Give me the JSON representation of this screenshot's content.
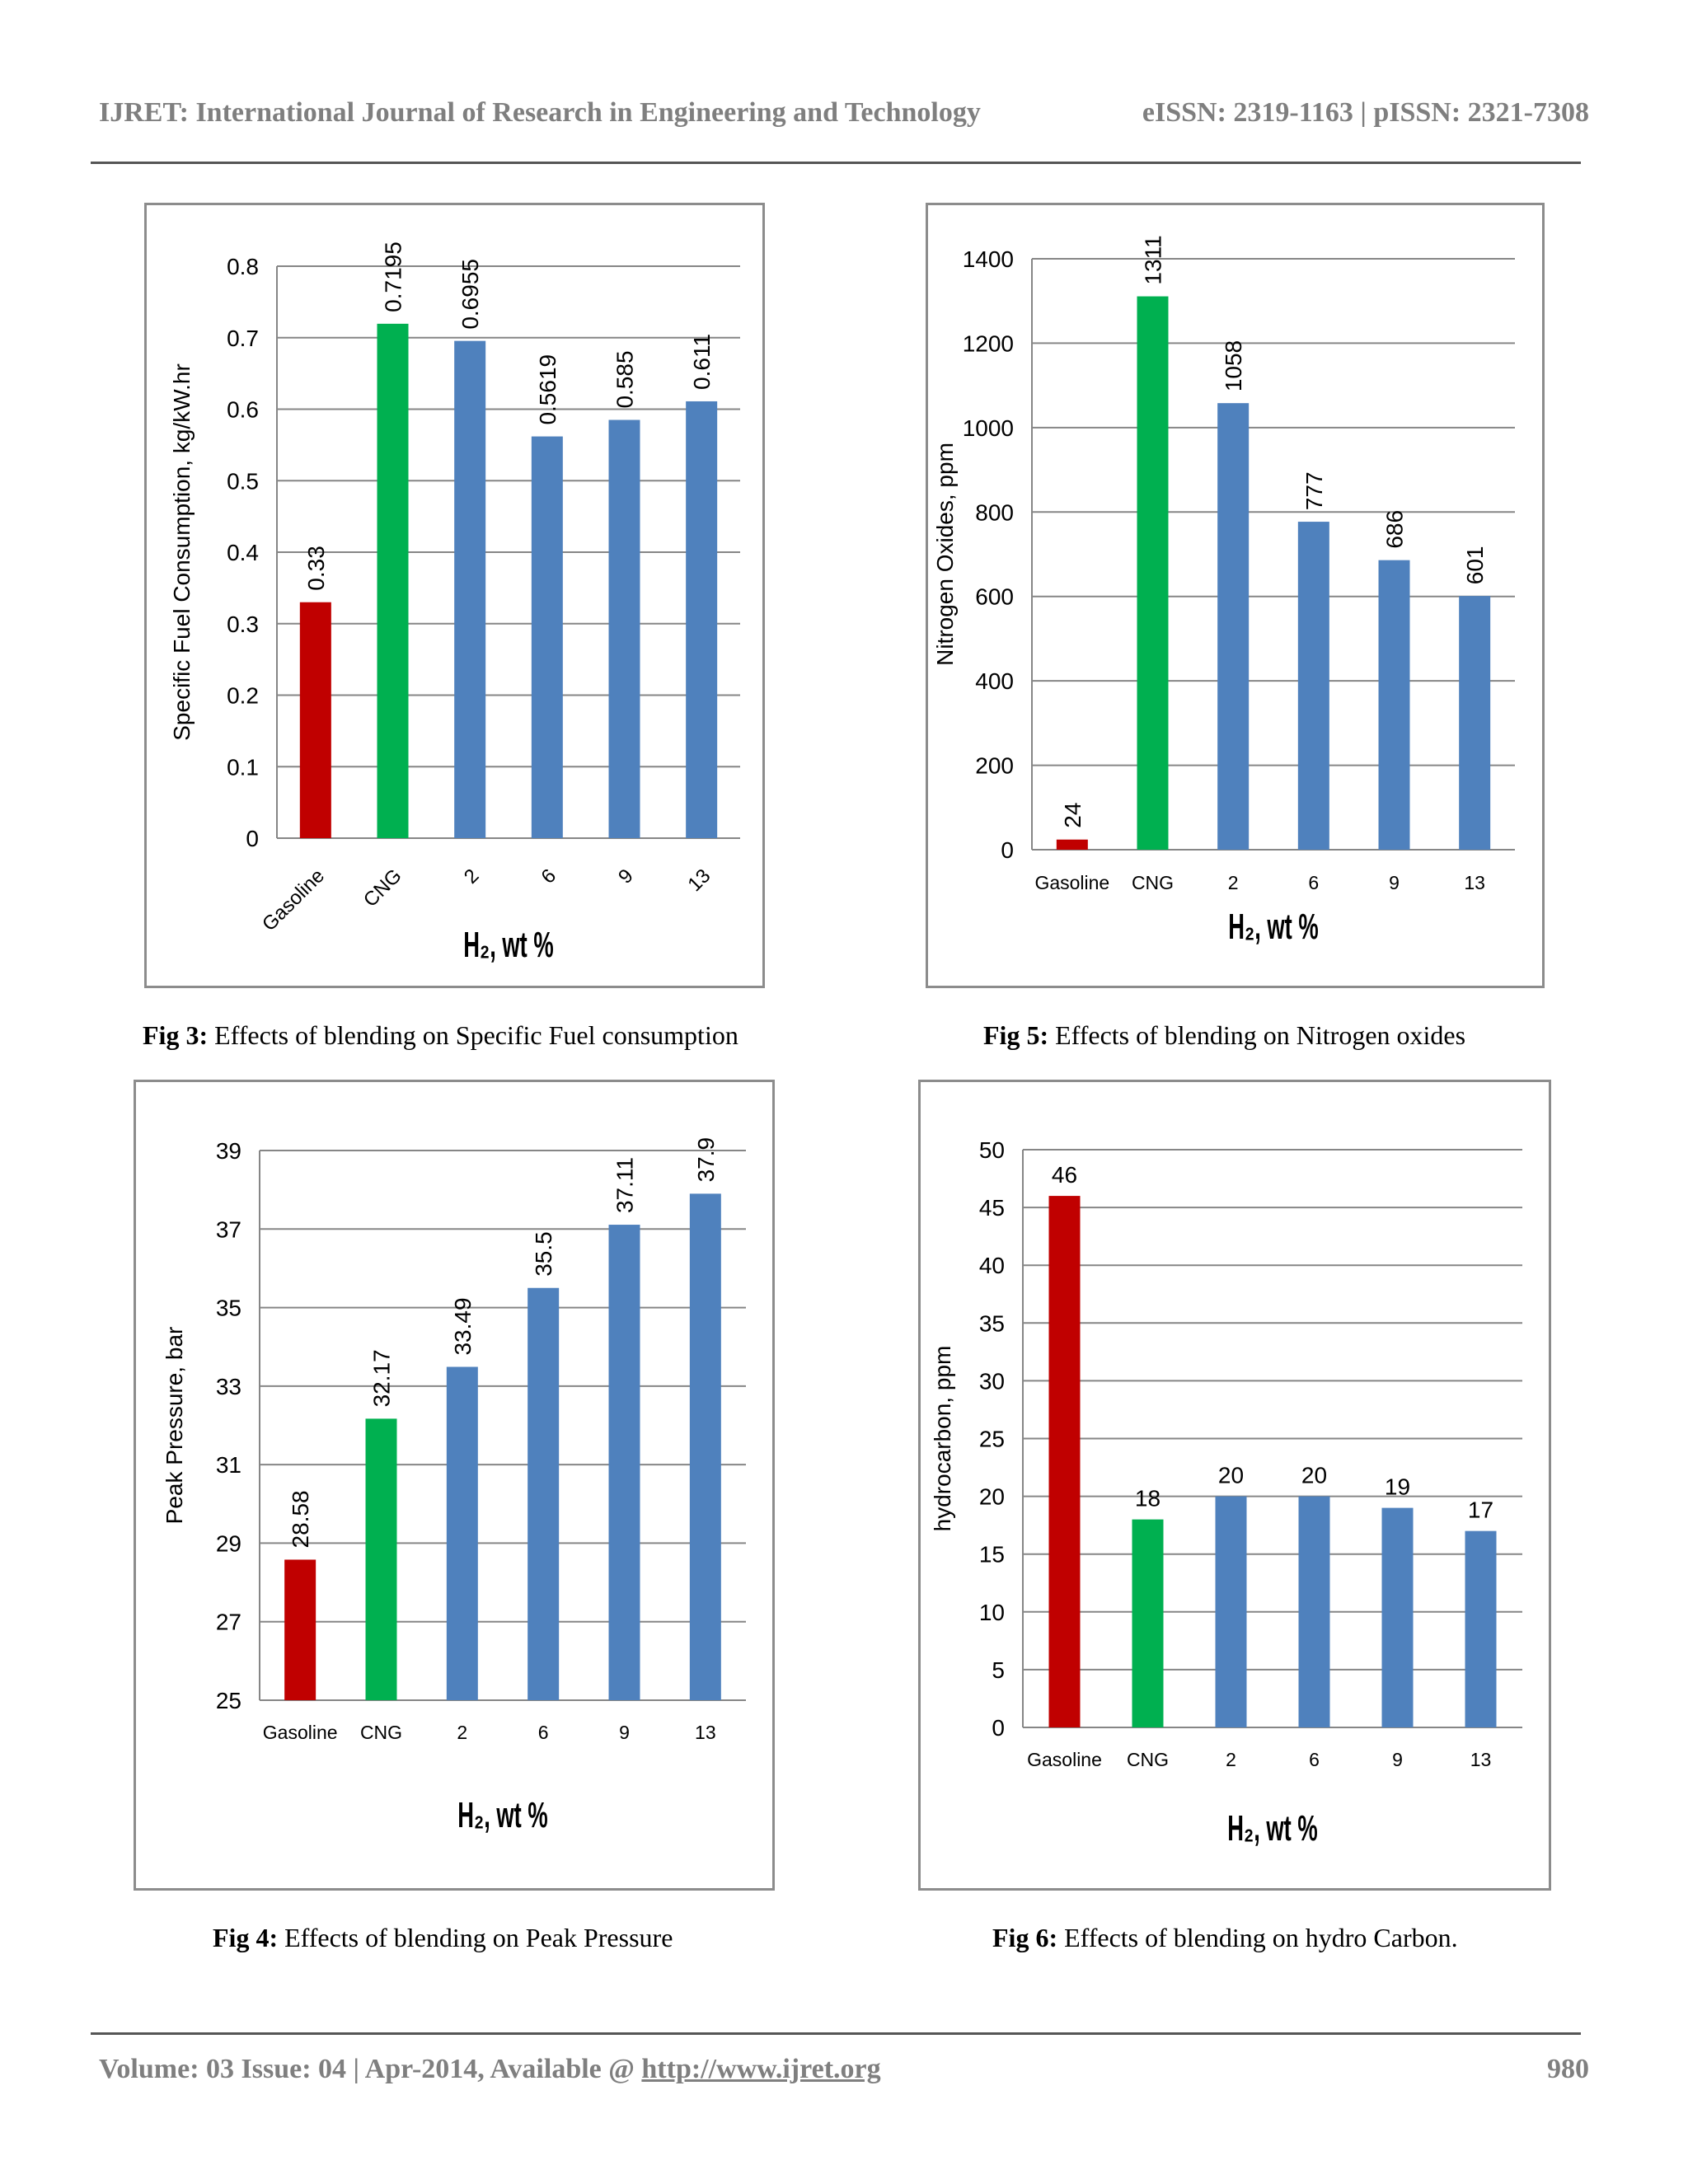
{
  "header": {
    "journal": "IJRET: International Journal of Research in Engineering and Technology",
    "issn": "eISSN: 2319-1163 | pISSN: 2321-7308"
  },
  "footer": {
    "volume": "Volume: 03 Issue: 04 | Apr-2014, Available @ ",
    "url": "http://www.ijret.org",
    "page": "980"
  },
  "colors": {
    "gasoline": "#c00000",
    "cng": "#00b050",
    "hydrogen": "#4f81bd",
    "grid": "#868686"
  },
  "captions": [
    {
      "label": "Fig 3:",
      "text": " Effects of blending on Specific Fuel consumption"
    },
    {
      "label": "Fig 5:",
      "text": " Effects of blending on Nitrogen oxides"
    },
    {
      "label": "Fig 4:",
      "text": " Effects of blending on Peak Pressure"
    },
    {
      "label": "Fig 6:",
      "text": " Effects of blending on hydro Carbon."
    }
  ],
  "chart_data": [
    {
      "type": "bar",
      "figure": "Fig 3",
      "categories": [
        "Gasoline",
        "CNG",
        "2",
        "6",
        "9",
        "13"
      ],
      "values": [
        0.33,
        0.7195,
        0.6955,
        0.5619,
        0.585,
        0.611
      ],
      "value_labels": [
        "0.33",
        "0.7195",
        "0.6955",
        "0.5619",
        "0.585",
        "0.611"
      ],
      "ylabel": "Specific Fuel Consumption, kg/kW.hr",
      "xlabel": "H₂, wt %",
      "ylim": [
        0,
        0.8
      ],
      "yticks": [
        "0",
        "0.1",
        "0.2",
        "0.3",
        "0.4",
        "0.5",
        "0.6",
        "0.7",
        "0.8"
      ],
      "grid": true,
      "rotated_categories": true,
      "rotated_value_labels": true
    },
    {
      "type": "bar",
      "figure": "Fig 5",
      "categories": [
        "Gasoline",
        "CNG",
        "2",
        "6",
        "9",
        "13"
      ],
      "values": [
        24,
        1311,
        1058,
        777,
        686,
        601
      ],
      "value_labels": [
        "24",
        "1311",
        "1058",
        "777",
        "686",
        "601"
      ],
      "ylabel": "Nitrogen Oxides, ppm",
      "xlabel": "H₂, wt %",
      "ylim": [
        0,
        1400
      ],
      "yticks": [
        "0",
        "200",
        "400",
        "600",
        "800",
        "1000",
        "1200",
        "1400"
      ],
      "grid": true,
      "rotated_categories": false,
      "rotated_value_labels": true
    },
    {
      "type": "bar",
      "figure": "Fig 4",
      "categories": [
        "Gasoline",
        "CNG",
        "2",
        "6",
        "9",
        "13"
      ],
      "values": [
        28.58,
        32.17,
        33.49,
        35.5,
        37.11,
        37.9
      ],
      "value_labels": [
        "28.58",
        "32.17",
        "33.49",
        "35.5",
        "37.11",
        "37.9"
      ],
      "ylabel": "Peak Pressure, bar",
      "xlabel": "H₂, wt %",
      "ylim": [
        25,
        39
      ],
      "yticks": [
        "25",
        "27",
        "29",
        "31",
        "33",
        "35",
        "37",
        "39"
      ],
      "grid": true,
      "rotated_categories": false,
      "rotated_value_labels": true
    },
    {
      "type": "bar",
      "figure": "Fig 6",
      "categories": [
        "Gasoline",
        "CNG",
        "2",
        "6",
        "9",
        "13"
      ],
      "values": [
        46,
        18,
        20,
        20,
        19,
        17
      ],
      "value_labels": [
        "46",
        "18",
        "20",
        "20",
        "19",
        "17"
      ],
      "ylabel": "hydrocarbon, ppm",
      "xlabel": "H₂, wt %",
      "ylim": [
        0,
        50
      ],
      "yticks": [
        "0",
        "5",
        "10",
        "15",
        "20",
        "25",
        "30",
        "35",
        "40",
        "45",
        "50"
      ],
      "grid": true,
      "rotated_categories": false,
      "rotated_value_labels": false
    }
  ]
}
